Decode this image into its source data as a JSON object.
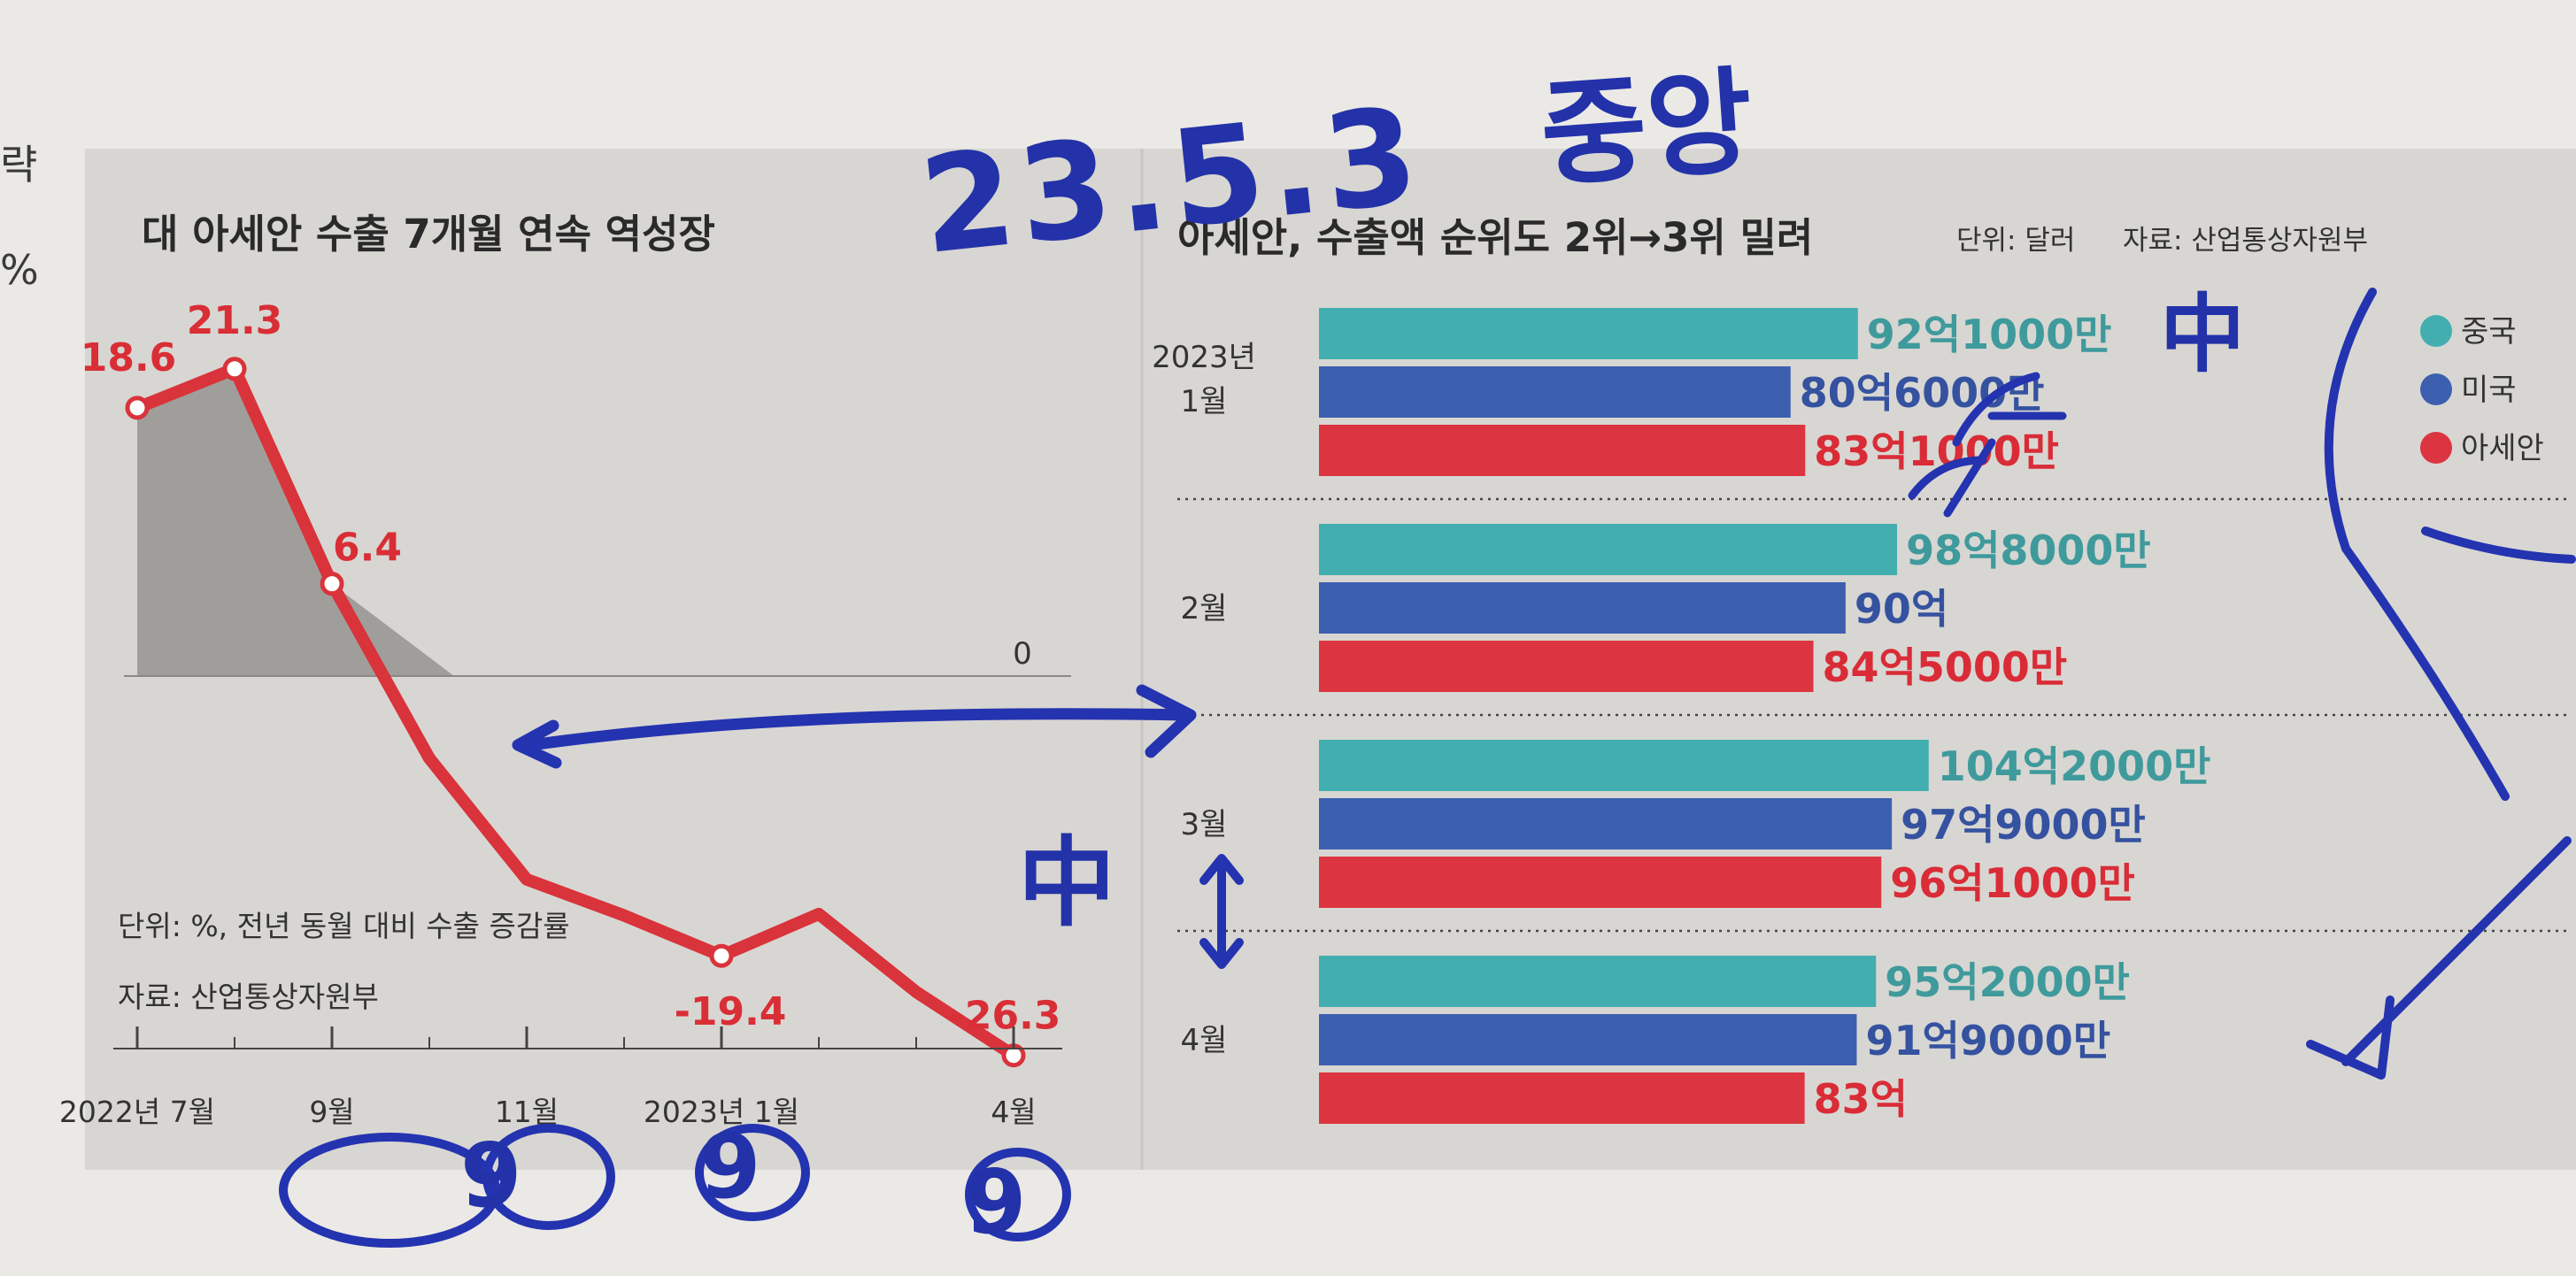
{
  "edge_text": [
    "략",
    "%"
  ],
  "handwriting": {
    "date": "23.5.3",
    "word": "중앙",
    "china_mark": "中",
    "circles": [
      "9",
      "9",
      "9"
    ],
    "bracket_mark": "中"
  },
  "colors": {
    "line": "#d9333b",
    "china": "#43aeb0",
    "usa": "#3d5fb0",
    "asean": "#dc3440",
    "ink": "#2433b0",
    "panel": "#d6d4d0"
  },
  "chart_data": [
    {
      "type": "line",
      "title": "대 아세안 수출 7개월 연속 역성장",
      "unit_note": "단위: %, 전년 동월 대비 수출 증감률",
      "source": "자료: 산업통상자원부",
      "x_tick_labels": [
        "2022년 7월",
        "9월",
        "11월",
        "2023년 1월",
        "4월"
      ],
      "x_ticks_at": [
        0,
        2,
        4,
        6,
        9
      ],
      "x": [
        0,
        1,
        2,
        3,
        4,
        5,
        6,
        7,
        8,
        9
      ],
      "y": [
        18.6,
        21.3,
        6.4,
        -5.7,
        -14.1,
        -16.6,
        -19.4,
        -16.5,
        -21.9,
        -26.3
      ],
      "point_labels": [
        {
          "i": 0,
          "text": "18.6"
        },
        {
          "i": 1,
          "text": "21.3"
        },
        {
          "i": 2,
          "text": "6.4"
        },
        {
          "i": 6,
          "text": "-19.4"
        },
        {
          "i": 9,
          "text": "-26.3"
        }
      ],
      "marked_points": [
        0,
        1,
        2,
        6,
        9
      ],
      "zero_label": "0",
      "ylim": [
        -30,
        25
      ]
    },
    {
      "type": "bar",
      "orientation": "horizontal",
      "title": "아세안, 수출액 순위도 2위→3위 밀려",
      "unit_note": "단위: 달러",
      "source": "자료: 산업통상자원부",
      "categories": [
        [
          "2023년",
          "1월"
        ],
        [
          "2월"
        ],
        [
          "3월"
        ],
        [
          "4월"
        ]
      ],
      "legend": [
        "중국",
        "미국",
        "아세안"
      ],
      "legend_position": "top-right",
      "xlim": [
        0,
        130
      ],
      "series": [
        {
          "name": "중국",
          "values": [
            92.1,
            98.8,
            104.2,
            95.2
          ],
          "labels": [
            "92억1000만",
            "98억8000만",
            "104억2000만",
            "95억2000만"
          ]
        },
        {
          "name": "미국",
          "values": [
            80.6,
            90.0,
            97.9,
            91.9
          ],
          "labels": [
            "80억6000만",
            "90억",
            "97억9000만",
            "91억9000만"
          ]
        },
        {
          "name": "아세안",
          "values": [
            83.1,
            84.5,
            96.1,
            83.0
          ],
          "labels": [
            "83억1000만",
            "84억5000만",
            "96억1000만",
            "83억"
          ]
        }
      ]
    }
  ]
}
